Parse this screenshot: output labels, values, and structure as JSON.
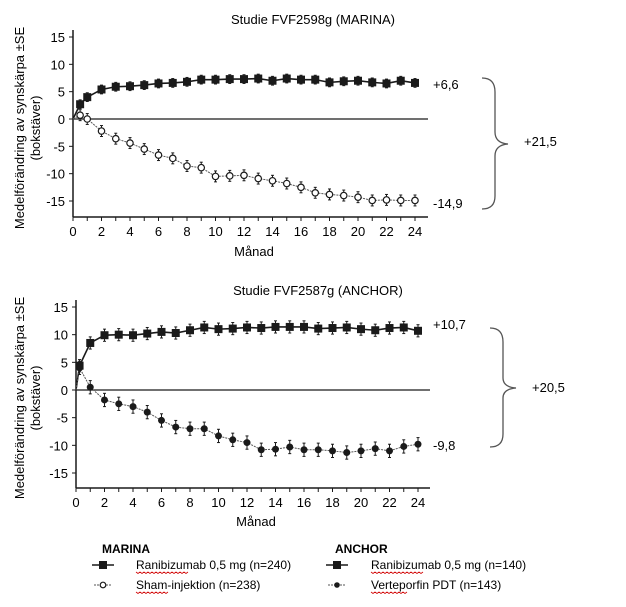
{
  "chart_data": [
    {
      "type": "line",
      "title": "Studie FVF2598g (MARINA)",
      "xlabel": "Månad",
      "ylabel": "Medelförändring av synskärpa ±SE",
      "ylabel2": "(bokstäver)",
      "xlim": [
        0,
        24
      ],
      "ylim": [
        -17,
        16
      ],
      "xticks": [
        "0",
        "2",
        "4",
        "6",
        "8",
        "10",
        "12",
        "14",
        "16",
        "18",
        "20",
        "22",
        "24"
      ],
      "yticks": [
        "15",
        "10",
        "5",
        "0",
        "-5",
        "-10",
        "-15"
      ],
      "ytick_values": [
        15,
        10,
        5,
        0,
        -5,
        -10,
        -15
      ],
      "zero_line": true,
      "annotations": {
        "top_end": "+6,6",
        "bottom_end": "-14,9",
        "difference": "+21,5"
      },
      "series": [
        {
          "name": "Ranibizumab 0,5 mg (n=240)",
          "marker": "square-filled",
          "x": [
            0.5,
            1,
            2,
            3,
            4,
            5,
            6,
            7,
            8,
            9,
            10,
            11,
            12,
            13,
            14,
            15,
            16,
            17,
            18,
            19,
            20,
            21,
            22,
            23,
            24
          ],
          "values": [
            2.7,
            4.0,
            5.4,
            5.9,
            6.0,
            6.2,
            6.5,
            6.6,
            6.8,
            7.2,
            7.2,
            7.3,
            7.3,
            7.4,
            7.0,
            7.4,
            7.2,
            7.2,
            6.7,
            6.9,
            7.0,
            6.7,
            6.5,
            7.0,
            6.6
          ],
          "se": 0.8
        },
        {
          "name": "Sham-injektion (n=238)",
          "marker": "circle-open",
          "x": [
            0.5,
            1,
            2,
            3,
            4,
            5,
            6,
            7,
            8,
            9,
            10,
            11,
            12,
            13,
            14,
            15,
            16,
            17,
            18,
            19,
            20,
            21,
            22,
            23,
            24
          ],
          "values": [
            0.7,
            0.0,
            -2.2,
            -3.6,
            -4.4,
            -5.5,
            -6.6,
            -7.2,
            -8.6,
            -8.9,
            -10.5,
            -10.4,
            -10.3,
            -10.9,
            -11.3,
            -11.8,
            -12.5,
            -13.5,
            -13.8,
            -14.0,
            -14.3,
            -14.9,
            -14.8,
            -14.9,
            -14.9
          ],
          "se": 1.0
        }
      ]
    },
    {
      "type": "line",
      "title": "Studie FVF2587g (ANCHOR)",
      "xlabel": "Månad",
      "ylabel": "Medelförändring av synskärpa ±SE",
      "ylabel2": "(bokstäver)",
      "xlim": [
        0,
        24
      ],
      "ylim": [
        -17,
        16
      ],
      "xticks": [
        "0",
        "2",
        "4",
        "6",
        "8",
        "10",
        "12",
        "14",
        "16",
        "18",
        "20",
        "22",
        "24"
      ],
      "yticks": [
        "15",
        "10",
        "5",
        "0",
        "-5",
        "-10",
        "-15"
      ],
      "ytick_values": [
        15,
        10,
        5,
        0,
        -5,
        -10,
        -15
      ],
      "zero_line": true,
      "annotations": {
        "top_end": "+10,7",
        "bottom_end": "-9,8",
        "difference": "+20,5"
      },
      "series": [
        {
          "name": "Ranibizumab 0,5 mg (n=140)",
          "marker": "square-filled",
          "x": [
            0.25,
            1,
            2,
            3,
            4,
            5,
            6,
            7,
            8,
            9,
            10,
            11,
            12,
            13,
            14,
            15,
            16,
            17,
            18,
            19,
            20,
            21,
            22,
            23,
            24
          ],
          "values": [
            4.4,
            8.5,
            9.9,
            10.0,
            9.9,
            10.2,
            10.5,
            10.3,
            10.8,
            11.3,
            11.0,
            11.1,
            11.3,
            11.2,
            11.4,
            11.4,
            11.4,
            11.1,
            11.2,
            11.3,
            11.0,
            10.8,
            11.2,
            11.3,
            10.7
          ],
          "se": 1.1
        },
        {
          "name": "Verteporfin PDT (n=143)",
          "marker": "circle-filled",
          "x": [
            0.25,
            1,
            2,
            3,
            4,
            5,
            6,
            7,
            8,
            9,
            10,
            11,
            12,
            13,
            14,
            15,
            16,
            17,
            18,
            19,
            20,
            21,
            22,
            23,
            24
          ],
          "values": [
            4.0,
            0.5,
            -1.8,
            -2.5,
            -3.0,
            -4.0,
            -5.5,
            -6.7,
            -7.0,
            -7.0,
            -8.3,
            -9.0,
            -9.5,
            -10.8,
            -10.7,
            -10.3,
            -10.8,
            -10.8,
            -11.0,
            -11.3,
            -11.0,
            -10.6,
            -11.0,
            -10.2,
            -9.8
          ],
          "se": 1.2
        }
      ]
    }
  ],
  "legend": {
    "groups": [
      {
        "title": "MARINA",
        "items": [
          {
            "label": "Ranibizumab 0,5 mg (n=240)",
            "marker": "square-filled"
          },
          {
            "label": "Sham-injektion (n=238)",
            "marker": "circle-open"
          }
        ]
      },
      {
        "title": "ANCHOR",
        "items": [
          {
            "label": "Ranibizumab 0,5 mg (n=140)",
            "marker": "square-filled"
          },
          {
            "label": "Verteporfin PDT (n=143)",
            "marker": "circle-filled"
          }
        ]
      }
    ]
  },
  "colors": {
    "ink": "#1a1a1a",
    "grey_line": "#555555",
    "spellcheck": "#d00000"
  }
}
